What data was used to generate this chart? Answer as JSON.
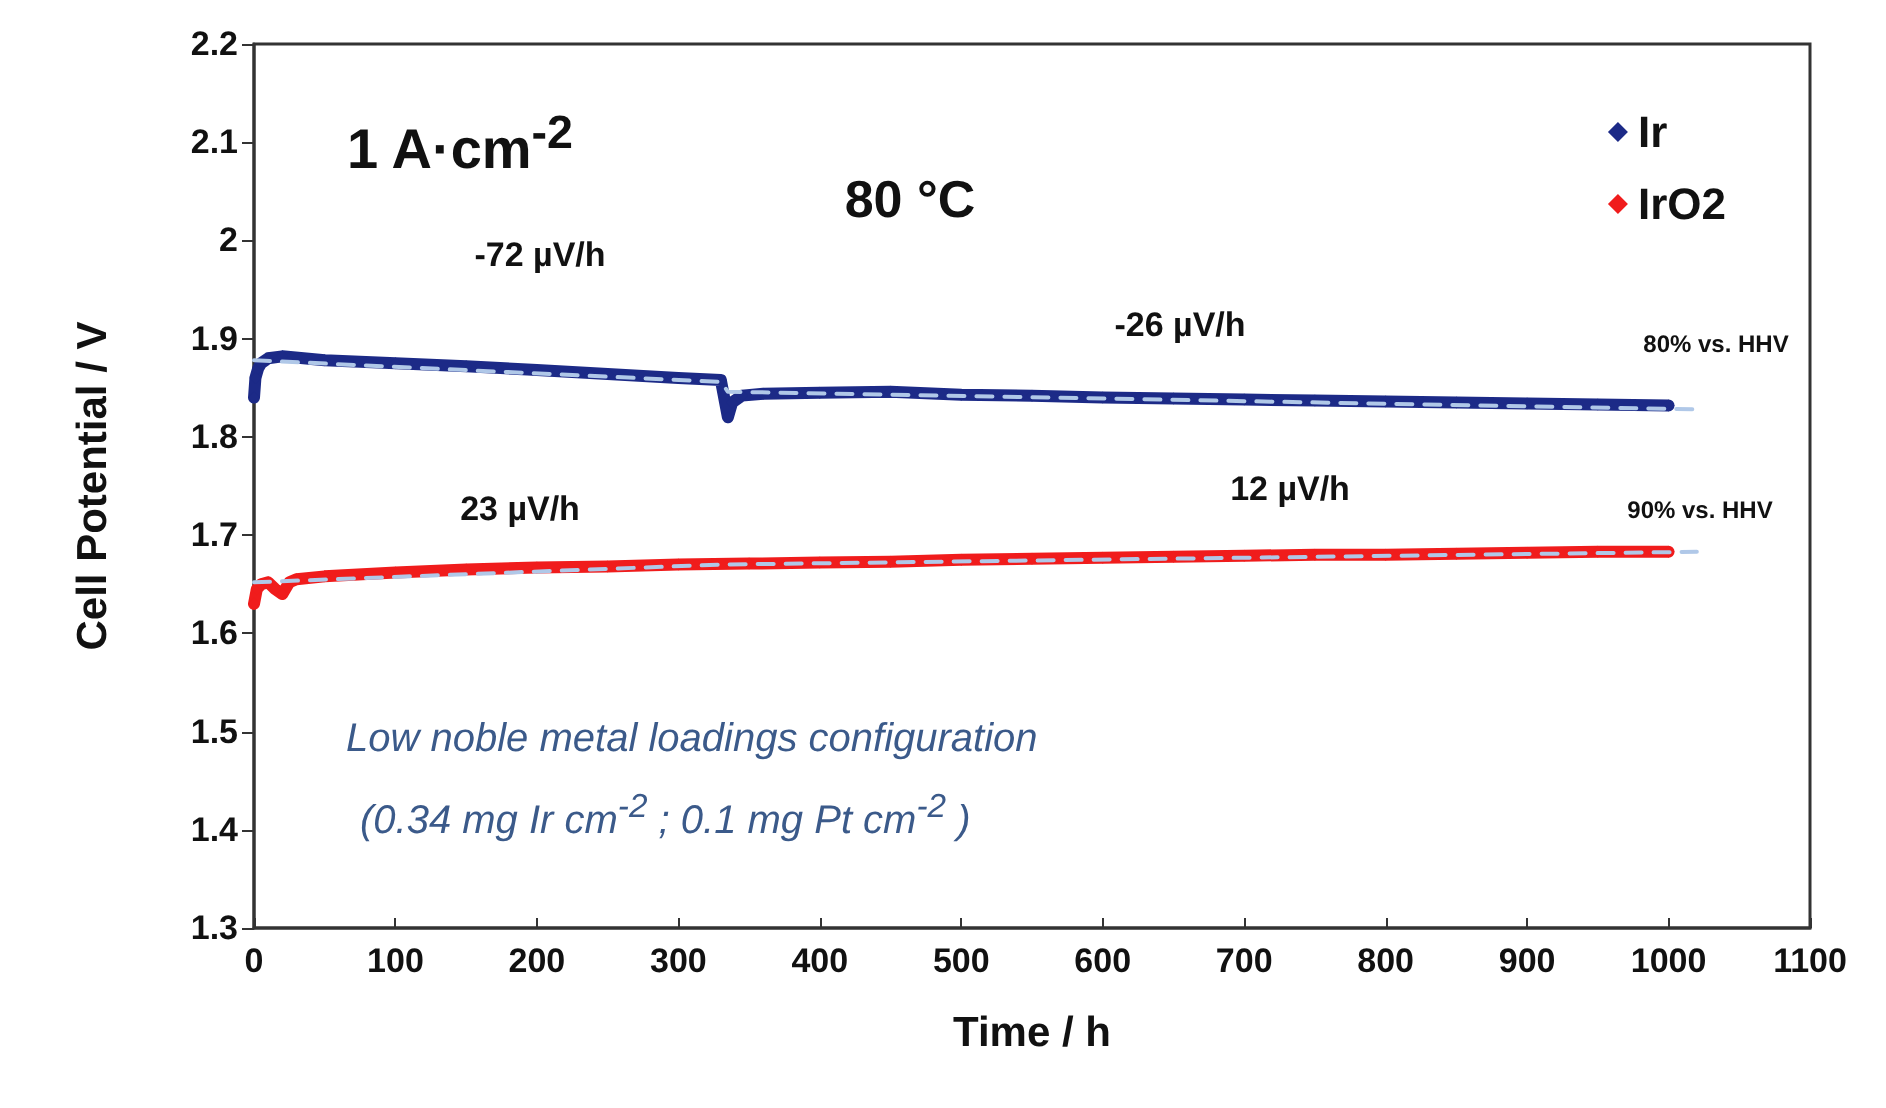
{
  "chart_data": {
    "type": "line",
    "xlabel": "Time / h",
    "ylabel": "Cell Potential / V",
    "xlim": [
      0,
      1100
    ],
    "xticks": [
      0,
      100,
      200,
      300,
      400,
      500,
      600,
      700,
      800,
      900,
      1000,
      1100
    ],
    "ylim": [
      1.3,
      2.2
    ],
    "yticks": [
      1.3,
      1.4,
      1.5,
      1.6,
      1.7,
      1.8,
      1.9,
      2,
      2.1,
      2.2
    ],
    "grid": false,
    "legend": "top right",
    "marker": "diamond",
    "series": [
      {
        "name": "Ir",
        "color": "#1c2a87",
        "x": [
          0,
          1,
          3,
          5,
          10,
          20,
          50,
          100,
          150,
          200,
          250,
          300,
          330,
          335,
          338,
          345,
          360,
          400,
          450,
          500,
          550,
          600,
          650,
          700,
          750,
          800,
          850,
          900,
          950,
          1000
        ],
        "values": [
          1.84,
          1.86,
          1.87,
          1.875,
          1.88,
          1.882,
          1.878,
          1.875,
          1.872,
          1.868,
          1.864,
          1.86,
          1.858,
          1.82,
          1.835,
          1.842,
          1.844,
          1.845,
          1.846,
          1.843,
          1.842,
          1.84,
          1.839,
          1.838,
          1.837,
          1.836,
          1.835,
          1.834,
          1.833,
          1.832
        ]
      },
      {
        "name": "IrO2",
        "color": "#f01c1c",
        "x": [
          0,
          2,
          5,
          10,
          15,
          20,
          25,
          30,
          50,
          100,
          150,
          200,
          250,
          300,
          350,
          400,
          450,
          500,
          550,
          600,
          650,
          700,
          750,
          800,
          850,
          900,
          950,
          1000
        ],
        "values": [
          1.63,
          1.645,
          1.65,
          1.652,
          1.645,
          1.64,
          1.652,
          1.655,
          1.658,
          1.662,
          1.665,
          1.667,
          1.668,
          1.67,
          1.671,
          1.672,
          1.673,
          1.675,
          1.676,
          1.677,
          1.678,
          1.679,
          1.68,
          1.68,
          1.681,
          1.682,
          1.683,
          1.683
        ]
      },
      {
        "type": "line",
        "color": "#b0c8e8",
        "line_style": "dashed",
        "marker": "none",
        "x": [
          0,
          330,
          335,
          1020
        ],
        "values": [
          1.878,
          1.856,
          1.846,
          1.828
        ]
      },
      {
        "type": "line",
        "color": "#b0c8e8",
        "line_style": "dashed",
        "marker": "none",
        "x": [
          0,
          330,
          1020
        ],
        "values": [
          1.652,
          1.67,
          1.683
        ]
      }
    ],
    "annotations": [
      "1 A·cm$^{-2}$",
      "80 °C",
      "-72 µV/h",
      "-26 µV/h",
      "80% vs. HHV",
      "23 µV/h",
      "12 µV/h",
      "90% vs. HHV",
      "Low noble metal loadings configuration",
      "(0.34 mg Ir cm$^{-2}$ ; 0.1 mg Pt cm$^{-2}$ )"
    ]
  }
}
